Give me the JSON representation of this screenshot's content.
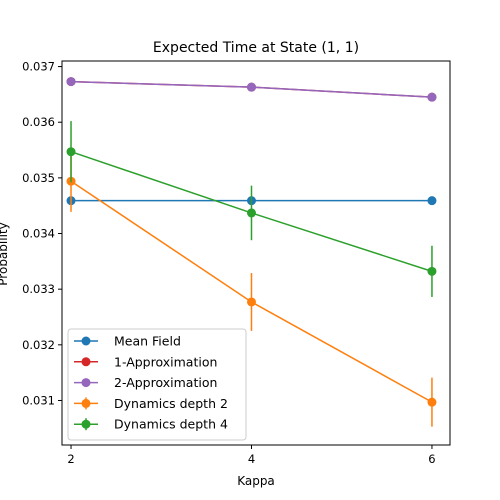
{
  "chart_data": {
    "type": "line",
    "title": "Expected Time at State (1, 1)",
    "xlabel": "Kappa",
    "ylabel": "Probability",
    "x": [
      2,
      4,
      6
    ],
    "xlim": [
      1.9,
      6.2
    ],
    "ylim": [
      0.0302,
      0.0371
    ],
    "xticks": [
      2,
      4,
      6
    ],
    "yticks": [
      0.031,
      0.032,
      0.033,
      0.034,
      0.035,
      0.036,
      0.037
    ],
    "grid": false,
    "legend_position": "lower-left",
    "series": [
      {
        "name": "Mean Field",
        "color": "#1f77b4",
        "values": [
          0.03459,
          0.03459,
          0.03459
        ]
      },
      {
        "name": "1-Approximation",
        "color": "#d62728",
        "values": [
          0.03673,
          0.03663,
          0.03645
        ]
      },
      {
        "name": "2-Approximation",
        "color": "#9467bd",
        "values": [
          0.03673,
          0.03663,
          0.03645
        ]
      },
      {
        "name": "Dynamics depth 2",
        "color": "#ff7f0e",
        "values": [
          0.03494,
          0.03277,
          0.03097
        ],
        "errors": [
          0.00055,
          0.00052,
          0.00044
        ]
      },
      {
        "name": "Dynamics depth 4",
        "color": "#2ca02c",
        "values": [
          0.03547,
          0.03437,
          0.03332
        ],
        "errors": [
          0.00055,
          0.00049,
          0.00046
        ]
      }
    ]
  }
}
